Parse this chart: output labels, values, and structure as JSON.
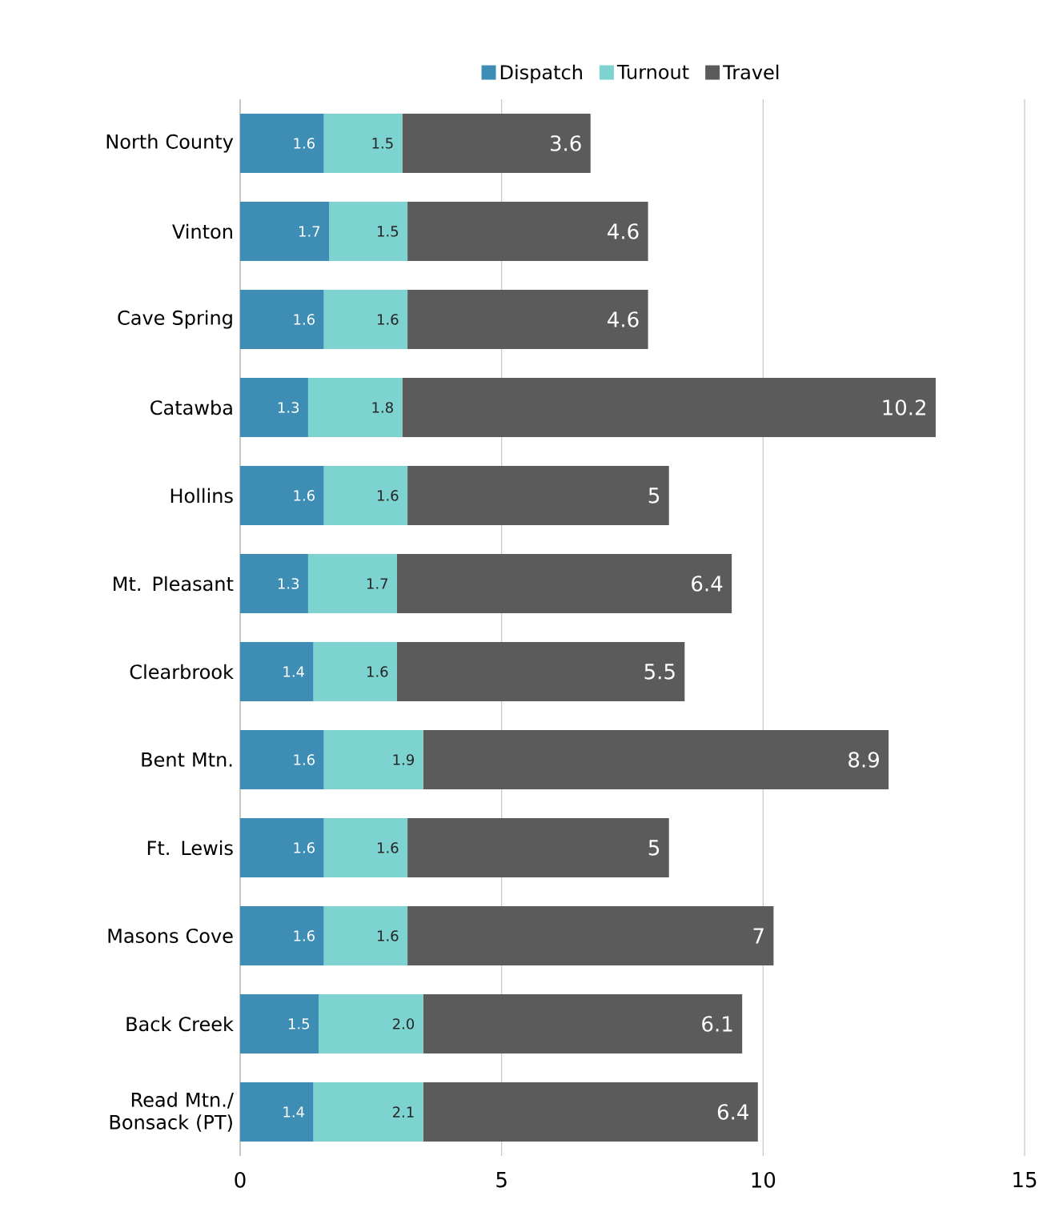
{
  "chart_data": {
    "type": "bar",
    "orientation": "horizontal",
    "stacked": true,
    "categories": [
      "North County",
      "Vinton",
      "Cave Spring",
      "Catawba",
      "Hollins",
      "Mt. Pleasant",
      "Clearbrook",
      "Bent Mtn.",
      "Ft. Lewis",
      "Masons Cove",
      "Back Creek",
      "Read Mtn./ Bonsack (PT)"
    ],
    "series": [
      {
        "name": "Dispatch",
        "color": "#3d8db5",
        "values": [
          1.6,
          1.7,
          1.6,
          1.3,
          1.6,
          1.3,
          1.4,
          1.6,
          1.6,
          1.6,
          1.5,
          1.4
        ],
        "value_labels": [
          "1.6",
          "1.7",
          "1.6",
          "1.3",
          "1.6",
          "1.3",
          "1.4",
          "1.6",
          "1.6",
          "1.6",
          "1.5",
          "1.4"
        ]
      },
      {
        "name": "Turnout",
        "color": "#7dd3d0",
        "values": [
          1.5,
          1.5,
          1.6,
          1.8,
          1.6,
          1.7,
          1.6,
          1.9,
          1.6,
          1.6,
          2.0,
          2.1
        ],
        "value_labels": [
          "1.5",
          "1.5",
          "1.6",
          "1.8",
          "1.6",
          "1.7",
          "1.6",
          "1.9",
          "1.6",
          "1.6",
          "2.0",
          "2.1"
        ]
      },
      {
        "name": "Travel",
        "color": "#5b5b5b",
        "values": [
          3.6,
          4.6,
          4.6,
          10.2,
          5,
          6.4,
          5.5,
          8.9,
          5,
          7,
          6.1,
          6.4
        ],
        "value_labels": [
          "3.6",
          "4.6",
          "4.6",
          "10.2",
          "5",
          "6.4",
          "5.5",
          "8.9",
          "5",
          "7",
          "6.1",
          "6.4"
        ]
      }
    ],
    "xlim": [
      0,
      15
    ],
    "xticks": [
      0,
      5,
      10,
      15
    ],
    "grid": "x",
    "legend": "top"
  }
}
